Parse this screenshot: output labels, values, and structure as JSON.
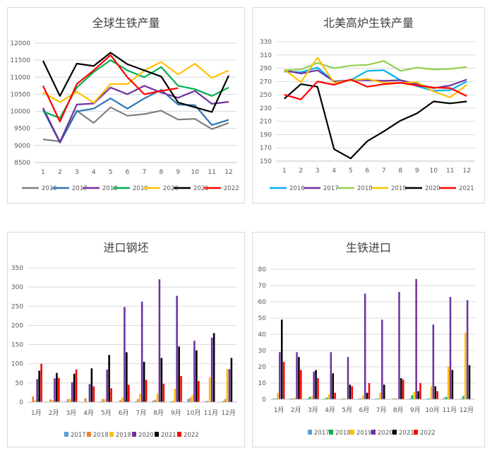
{
  "chart_data": [
    {
      "id": "chart1",
      "type": "line",
      "title": "全球生铁产量",
      "x": [
        "1",
        "2",
        "3",
        "4",
        "5",
        "6",
        "7",
        "8",
        "9",
        "10",
        "11",
        "12"
      ],
      "yticks": [
        8500,
        9000,
        9500,
        10000,
        10500,
        11000,
        11500,
        12000
      ],
      "ylim": [
        8500,
        12000
      ],
      "grid": true,
      "legend": "bottom",
      "series": [
        {
          "name": "2016",
          "color": "#7f7f7f",
          "values": [
            9180,
            9120,
            10020,
            9660,
            10120,
            9870,
            9920,
            10020,
            9760,
            9780,
            9480,
            9660
          ]
        },
        {
          "name": "2017",
          "color": "#2e75b6",
          "values": [
            10050,
            9080,
            10000,
            10080,
            10380,
            10080,
            10380,
            10630,
            10200,
            10180,
            9600,
            9750
          ]
        },
        {
          "name": "2018",
          "color": "#7030a0",
          "values": [
            10100,
            9100,
            10200,
            10230,
            10700,
            10500,
            10750,
            10550,
            10400,
            10600,
            10220,
            10280
          ]
        },
        {
          "name": "2019",
          "color": "#00b050",
          "values": [
            10000,
            9800,
            10700,
            11150,
            11500,
            11200,
            11000,
            11300,
            10750,
            10650,
            10450,
            10700
          ]
        },
        {
          "name": "2020",
          "color": "#ffc000",
          "values": [
            10550,
            10270,
            10570,
            10250,
            10800,
            10800,
            11200,
            11450,
            11080,
            11400,
            10980,
            11200
          ]
        },
        {
          "name": "2021",
          "color": "#000000",
          "values": [
            11480,
            10450,
            11400,
            11330,
            11720,
            11380,
            11200,
            11020,
            10260,
            10120,
            9980,
            11050
          ]
        },
        {
          "name": "2022",
          "color": "#ff0000",
          "values": [
            10750,
            9700,
            10800,
            11200,
            11650,
            11000,
            10500,
            10600,
            10680,
            null,
            null,
            null
          ]
        }
      ]
    },
    {
      "id": "chart2",
      "type": "line",
      "title": "北美高炉生铁产量",
      "x": [
        "1",
        "2",
        "3",
        "4",
        "5",
        "6",
        "7",
        "8",
        "9",
        "10",
        "11",
        "12"
      ],
      "yticks": [
        150,
        170,
        190,
        210,
        230,
        250,
        270,
        290,
        310,
        330
      ],
      "ylim": [
        150,
        330
      ],
      "grid": true,
      "legend": "bottom",
      "series": [
        {
          "name": "2016",
          "color": "#00b0f0",
          "values": [
            285,
            284,
            291,
            270,
            272,
            286,
            287,
            272,
            263,
            256,
            257,
            270
          ]
        },
        {
          "name": "2017",
          "color": "#7030a0",
          "values": [
            287,
            282,
            287,
            270,
            272,
            272,
            271,
            272,
            266,
            260,
            264,
            273
          ]
        },
        {
          "name": "2018",
          "color": "#92d050",
          "values": [
            287,
            288,
            298,
            290,
            294,
            295,
            301,
            286,
            291,
            288,
            289,
            292
          ]
        },
        {
          "name": "2019",
          "color": "#ffc000",
          "values": [
            288,
            269,
            306,
            268,
            272,
            274,
            268,
            268,
            269,
            255,
            246,
            265
          ]
        },
        {
          "name": "2020",
          "color": "#000000",
          "values": [
            244,
            266,
            262,
            168,
            154,
            180,
            195,
            211,
            222,
            240,
            237,
            240
          ]
        },
        {
          "name": "2021",
          "color": "#ff0000",
          "values": [
            250,
            243,
            270,
            265,
            273,
            262,
            266,
            268,
            264,
            261,
            260,
            248
          ]
        }
      ]
    },
    {
      "id": "chart3",
      "type": "bar",
      "title": "进口钢坯",
      "categories": [
        "1月",
        "2月",
        "3月",
        "4月",
        "5月",
        "6月",
        "7月",
        "8月",
        "9月",
        "10月",
        "11月",
        "12月"
      ],
      "yticks": [
        0,
        50,
        100,
        150,
        200,
        250,
        300,
        350
      ],
      "ylim": [
        0,
        350
      ],
      "grid": true,
      "legend": "bottom",
      "series": [
        {
          "name": "2017",
          "color": "#5b9bd5",
          "values": [
            1,
            1,
            2,
            1,
            2,
            1,
            2,
            4,
            2,
            8,
            3,
            3
          ]
        },
        {
          "name": "2018",
          "color": "#ed7d31",
          "values": [
            15,
            7,
            8,
            10,
            8,
            6,
            8,
            6,
            3,
            12,
            3,
            8
          ]
        },
        {
          "name": "2019",
          "color": "#ffc000",
          "values": [
            5,
            5,
            8,
            2,
            8,
            12,
            22,
            22,
            35,
            18,
            65,
            86
          ]
        },
        {
          "name": "2020",
          "color": "#7030a0",
          "values": [
            60,
            62,
            52,
            47,
            85,
            248,
            262,
            320,
            277,
            160,
            168,
            86
          ]
        },
        {
          "name": "2021",
          "color": "#000000",
          "values": [
            82,
            76,
            74,
            88,
            123,
            130,
            105,
            115,
            145,
            135,
            180,
            115
          ]
        },
        {
          "name": "2022",
          "color": "#ff0000",
          "values": [
            100,
            63,
            85,
            41,
            36,
            45,
            58,
            48,
            68,
            55,
            0,
            0
          ]
        }
      ]
    },
    {
      "id": "chart4",
      "type": "bar",
      "title": "生铁进口",
      "categories": [
        "1月",
        "2月",
        "3月",
        "4月",
        "5月",
        "6月",
        "7月",
        "8月",
        "9月",
        "10月",
        "11月",
        "12月"
      ],
      "yticks": [
        0,
        10,
        20,
        30,
        40,
        50,
        60,
        70,
        80
      ],
      "ylim": [
        0,
        80
      ],
      "grid": true,
      "legend": "bottom",
      "series": [
        {
          "name": "2017",
          "color": "#5b9bd5",
          "values": [
            0.5,
            0.5,
            0.5,
            0.5,
            0.5,
            0.5,
            0.5,
            0.5,
            0.5,
            0.5,
            1,
            0.5
          ]
        },
        {
          "name": "2018",
          "color": "#00b050",
          "values": [
            0.5,
            0.5,
            1.5,
            1,
            0.5,
            0.5,
            0.5,
            0.5,
            2.5,
            0.5,
            1.5,
            2
          ]
        },
        {
          "name": "2019",
          "color": "#ffc000",
          "values": [
            4,
            1,
            2,
            3,
            0.5,
            2.5,
            4,
            0.5,
            4.5,
            8,
            20,
            41
          ]
        },
        {
          "name": "2020",
          "color": "#7030a0",
          "values": [
            29,
            29,
            17,
            29,
            26,
            65,
            49,
            66,
            74,
            46,
            63,
            61
          ]
        },
        {
          "name": "2021",
          "color": "#000000",
          "values": [
            49,
            26,
            18,
            16,
            9,
            4,
            9,
            13,
            5,
            8,
            18,
            21
          ]
        },
        {
          "name": "2022",
          "color": "#ff0000",
          "values": [
            23,
            18,
            13,
            4,
            8,
            10,
            0,
            12,
            10,
            5,
            0,
            0
          ]
        }
      ]
    }
  ]
}
